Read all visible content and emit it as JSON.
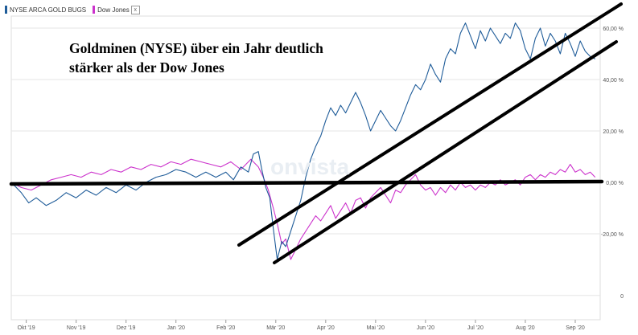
{
  "legend": {
    "items": [
      {
        "label": "NYSE ARCA GOLD BUGS",
        "color": "#1f5c99"
      },
      {
        "label": "Dow Jones",
        "color": "#cc33cc"
      }
    ],
    "close_glyph": "x"
  },
  "annotation": {
    "line1": "Goldminen (NYSE) über ein Jahr deutlich",
    "line2": "stärker als der Dow Jones"
  },
  "watermark": "onvista",
  "chart_data": {
    "type": "line",
    "title": "Goldminen (NYSE) über ein Jahr deutlich stärker als der Dow Jones",
    "xlabel": "",
    "ylabel": "",
    "x_tick_labels": [
      "Okt '19",
      "Nov '19",
      "Dez '19",
      "Jan '20",
      "Feb '20",
      "Mär '20",
      "Apr '20",
      "Mai '20",
      "Jun '20",
      "Jul '20",
      "Aug '20",
      "Sep '20"
    ],
    "y_tick_labels": [
      "60,00 %",
      "40,00 %",
      "20,00 %",
      "0,00 %",
      "-20,00 %",
      "0"
    ],
    "y_ticks": [
      60,
      40,
      20,
      0,
      -20
    ],
    "ylim": [
      -48,
      68
    ],
    "x_range_months": [
      0,
      11.8
    ],
    "grid": "horizontal",
    "series": [
      {
        "name": "NYSE ARCA GOLD BUGS",
        "color": "#1f5c99",
        "x": [
          0,
          0.2,
          0.35,
          0.5,
          0.7,
          0.9,
          1.1,
          1.3,
          1.5,
          1.7,
          1.9,
          2.1,
          2.3,
          2.5,
          2.7,
          2.9,
          3.1,
          3.3,
          3.5,
          3.7,
          3.9,
          4.1,
          4.3,
          4.45,
          4.6,
          4.75,
          4.85,
          4.95,
          5.02,
          5.1,
          5.18,
          5.25,
          5.33,
          5.42,
          5.5,
          5.6,
          5.7,
          5.8,
          5.9,
          6.0,
          6.1,
          6.2,
          6.3,
          6.4,
          6.5,
          6.6,
          6.7,
          6.8,
          6.9,
          7.0,
          7.1,
          7.2,
          7.3,
          7.4,
          7.5,
          7.6,
          7.7,
          7.8,
          7.9,
          8.0,
          8.1,
          8.2,
          8.3,
          8.4,
          8.5,
          8.6,
          8.7,
          8.8,
          8.9,
          9.0,
          9.1,
          9.2,
          9.3,
          9.4,
          9.5,
          9.6,
          9.7,
          9.8,
          9.9,
          10.0,
          10.1,
          10.2,
          10.3,
          10.4,
          10.5,
          10.6,
          10.7,
          10.8,
          10.9,
          11.0,
          11.1,
          11.2,
          11.3,
          11.4,
          11.5,
          11.6,
          11.7
        ],
        "values": [
          0,
          -4,
          -8,
          -6,
          -9,
          -7,
          -4,
          -6,
          -3,
          -5,
          -2,
          -4,
          -1,
          -3,
          0,
          2,
          3,
          5,
          4,
          2,
          4,
          2,
          4,
          1,
          6,
          4,
          11,
          12,
          5,
          -2,
          -6,
          -18,
          -30,
          -23,
          -25,
          -19,
          -13,
          -7,
          2,
          9,
          14,
          18,
          24,
          29,
          26,
          30,
          27,
          31,
          35,
          31,
          26,
          20,
          24,
          28,
          25,
          22,
          20,
          24,
          29,
          34,
          38,
          36,
          40,
          46,
          42,
          39,
          48,
          52,
          50,
          58,
          62,
          57,
          52,
          59,
          55,
          60,
          57,
          54,
          58,
          56,
          62,
          59,
          52,
          48,
          56,
          60,
          53,
          58,
          55,
          50,
          58,
          54,
          49,
          55,
          51,
          49,
          48
        ]
      },
      {
        "name": "Dow Jones",
        "color": "#cc33cc",
        "x": [
          0,
          0.2,
          0.4,
          0.6,
          0.8,
          1.0,
          1.2,
          1.4,
          1.6,
          1.8,
          2.0,
          2.2,
          2.4,
          2.6,
          2.8,
          3.0,
          3.2,
          3.4,
          3.6,
          3.8,
          4.0,
          4.2,
          4.4,
          4.6,
          4.8,
          4.95,
          5.05,
          5.15,
          5.25,
          5.33,
          5.42,
          5.5,
          5.6,
          5.7,
          5.8,
          5.9,
          6.0,
          6.1,
          6.2,
          6.3,
          6.4,
          6.5,
          6.6,
          6.7,
          6.8,
          6.9,
          7.0,
          7.1,
          7.2,
          7.3,
          7.4,
          7.5,
          7.6,
          7.7,
          7.8,
          7.9,
          8.0,
          8.1,
          8.2,
          8.3,
          8.4,
          8.5,
          8.6,
          8.7,
          8.8,
          8.9,
          9.0,
          9.1,
          9.2,
          9.3,
          9.4,
          9.5,
          9.6,
          9.7,
          9.8,
          9.9,
          10.0,
          10.1,
          10.2,
          10.3,
          10.4,
          10.5,
          10.6,
          10.7,
          10.8,
          10.9,
          11.0,
          11.1,
          11.2,
          11.3,
          11.4,
          11.5,
          11.6,
          11.7
        ],
        "values": [
          0,
          -2,
          -3,
          -1,
          1,
          2,
          3,
          2,
          4,
          3,
          5,
          4,
          6,
          5,
          7,
          6,
          8,
          7,
          9,
          8,
          7,
          6,
          8,
          5,
          9,
          6,
          2,
          -3,
          -10,
          -16,
          -24,
          -22,
          -30,
          -26,
          -22,
          -19,
          -16,
          -13,
          -15,
          -12,
          -9,
          -14,
          -11,
          -8,
          -12,
          -7,
          -6,
          -10,
          -6,
          -4,
          -2,
          -5,
          -8,
          -3,
          -4,
          -1,
          1,
          3,
          -1,
          -3,
          -2,
          -5,
          -2,
          -4,
          -1,
          -3,
          0,
          -2,
          -1,
          -3,
          -1,
          -2,
          0,
          -1,
          1,
          -1,
          0,
          1,
          -1,
          2,
          3,
          1,
          3,
          2,
          4,
          3,
          5,
          4,
          7,
          4,
          5,
          3,
          4,
          2
        ]
      }
    ]
  }
}
